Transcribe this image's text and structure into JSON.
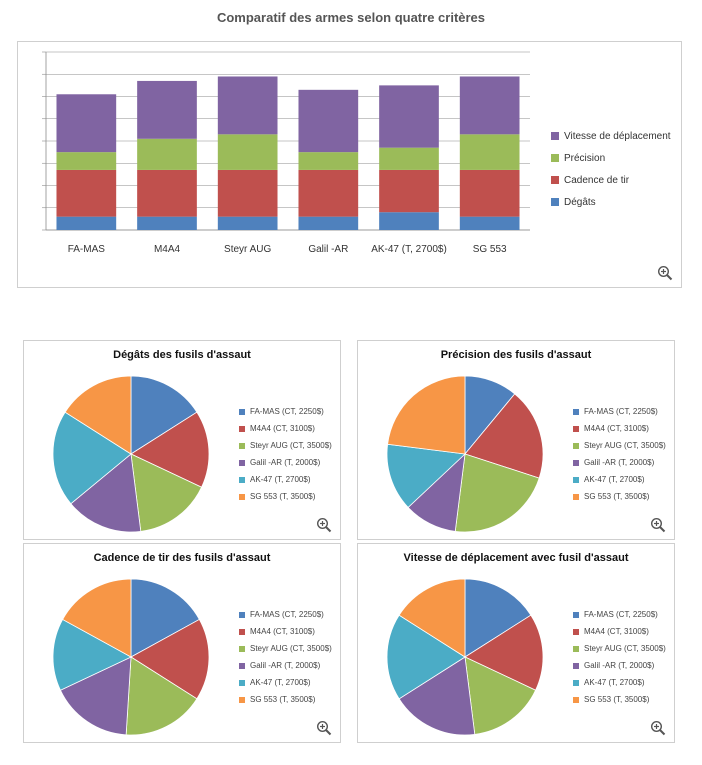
{
  "page": {
    "main_title": "Comparatif des armes selon quatre critères"
  },
  "colors": {
    "blue": "#4f81bd",
    "red": "#c0504d",
    "green": "#9bbb59",
    "purple": "#8064a2",
    "teal": "#4bacc6",
    "orange": "#f79646"
  },
  "icons": {
    "zoom": "magnifier-plus-icon"
  },
  "chart_data": [
    {
      "type": "bar",
      "stacked": true,
      "title": "Comparatif des armes selon quatre critères",
      "categories": [
        "FA-MAS",
        "M4A4",
        "Steyr AUG",
        "Galil -AR",
        "AK-47 (T, 2700$)",
        "SG 553"
      ],
      "series": [
        {
          "name": "Dégâts",
          "color": "#4f81bd",
          "values": [
            0.6,
            0.6,
            0.6,
            0.6,
            0.8,
            0.6
          ]
        },
        {
          "name": "Cadence de tir",
          "color": "#c0504d",
          "values": [
            2.1,
            2.1,
            2.1,
            2.1,
            1.9,
            2.1
          ]
        },
        {
          "name": "Précision",
          "color": "#9bbb59",
          "values": [
            0.8,
            1.4,
            1.6,
            0.8,
            1.0,
            1.6
          ]
        },
        {
          "name": "Vitesse de déplacement",
          "color": "#8064a2",
          "values": [
            2.6,
            2.6,
            2.6,
            2.8,
            2.8,
            2.6
          ]
        }
      ],
      "ylim": [
        0,
        8
      ],
      "grid": true,
      "legend_position": "right"
    },
    {
      "type": "pie",
      "title": "Dégâts des fusils d'assaut",
      "labels": [
        "FA-MAS (CT, 2250$)",
        "M4A4 (CT, 3100$)",
        "Steyr AUG (CT, 3500$)",
        "Galil -AR (T, 2000$)",
        "AK-47 (T, 2700$)",
        "SG 553 (T, 3500$)"
      ],
      "values": [
        16,
        16,
        16,
        16,
        20,
        16
      ]
    },
    {
      "type": "pie",
      "title": "Précision des fusils d'assaut",
      "labels": [
        "FA-MAS (CT, 2250$)",
        "M4A4 (CT, 3100$)",
        "Steyr AUG (CT, 3500$)",
        "Galil -AR (T, 2000$)",
        "AK-47 (T, 2700$)",
        "SG 553 (T, 3500$)"
      ],
      "values": [
        11,
        19,
        22,
        11,
        14,
        23
      ]
    },
    {
      "type": "pie",
      "title": "Cadence de tir des fusils d'assaut",
      "labels": [
        "FA-MAS (CT, 2250$)",
        "M4A4 (CT, 3100$)",
        "Steyr AUG (CT, 3500$)",
        "Galil -AR (T, 2000$)",
        "AK-47 (T, 2700$)",
        "SG 553 (T, 3500$)"
      ],
      "values": [
        17,
        17,
        17,
        17,
        15,
        17
      ]
    },
    {
      "type": "pie",
      "title": "Vitesse de déplacement avec fusil d'assaut",
      "labels": [
        "FA-MAS (CT, 2250$)",
        "M4A4 (CT, 3100$)",
        "Steyr AUG (CT, 3500$)",
        "Galil -AR (T, 2000$)",
        "AK-47 (T, 2700$)",
        "SG 553 (T, 3500$)"
      ],
      "values": [
        16,
        16,
        16,
        18,
        18,
        16
      ]
    }
  ]
}
